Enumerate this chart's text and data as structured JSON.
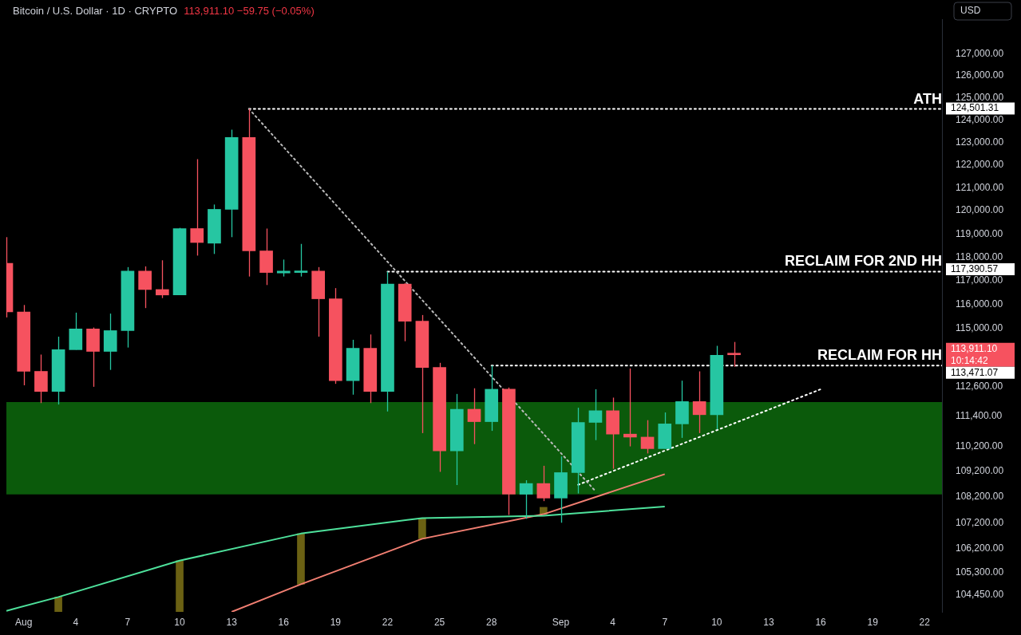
{
  "chart_data": {
    "type": "candlestick",
    "title": "Bitcoin / U.S. Dollar · 1D · CRYPTO",
    "subtitle": "113,911.10 −59.75 (−0.05%)",
    "log": "y",
    "xlim": [
      "--07-31",
      "--09-23"
    ],
    "ylim": [
      103800,
      128600
    ],
    "xticks": [
      {
        "value": "--08-01",
        "label": "Aug"
      },
      {
        "value": "--08-04",
        "label": "4"
      },
      {
        "value": "--08-07",
        "label": "7"
      },
      {
        "value": "--08-10",
        "label": "10"
      },
      {
        "value": "--08-13",
        "label": "13"
      },
      {
        "value": "--08-16",
        "label": "16"
      },
      {
        "value": "--08-19",
        "label": "19"
      },
      {
        "value": "--08-22",
        "label": "22"
      },
      {
        "value": "--08-25",
        "label": "25"
      },
      {
        "value": "--08-28",
        "label": "28"
      },
      {
        "value": "--09-01",
        "label": "Sep"
      },
      {
        "value": "--09-04",
        "label": "4"
      },
      {
        "value": "--09-07",
        "label": "7"
      },
      {
        "value": "--09-10",
        "label": "10"
      },
      {
        "value": "--09-13",
        "label": "13"
      },
      {
        "value": "--09-16",
        "label": "16"
      },
      {
        "value": "--09-19",
        "label": "19"
      },
      {
        "value": "--09-22",
        "label": "22"
      }
    ],
    "yticks": [
      {
        "value": 127000,
        "label": "127,000.00"
      },
      {
        "value": 126000,
        "label": "126,000.00"
      },
      {
        "value": 125000,
        "label": "125,000.00"
      },
      {
        "value": 124000,
        "label": "124,000.00"
      },
      {
        "value": 123000,
        "label": "123,000.00"
      },
      {
        "value": 122000,
        "label": "122,000.00"
      },
      {
        "value": 121000,
        "label": "121,000.00"
      },
      {
        "value": 120000,
        "label": "120,000.00"
      },
      {
        "value": 119000,
        "label": "119,000.00"
      },
      {
        "value": 118000,
        "label": "118,000.00"
      },
      {
        "value": 117000,
        "label": "117,000.00"
      },
      {
        "value": 116000,
        "label": "116,000.00"
      },
      {
        "value": 115000,
        "label": "115,000.00"
      },
      {
        "value": 112600,
        "label": "112,600.00"
      },
      {
        "value": 111400,
        "label": "111,400.00"
      },
      {
        "value": 110200,
        "label": "110,200.00"
      },
      {
        "value": 109200,
        "label": "109,200.00"
      },
      {
        "value": 108200,
        "label": "108,200.00"
      },
      {
        "value": 107200,
        "label": "107,200.00"
      },
      {
        "value": 106200,
        "label": "106,200.00"
      },
      {
        "value": 105300,
        "label": "105,300.00"
      },
      {
        "value": 104450,
        "label": "104,450.00"
      }
    ],
    "bands": [
      {
        "axis": "y",
        "from": 108300,
        "to": 111980,
        "color": "#0b5a0b"
      }
    ],
    "series": [
      {
        "type": "bar",
        "x": [
          "--08-03",
          "--08-10",
          "--08-17",
          "--08-24",
          "--08-31"
        ],
        "base": [
          103800,
          103800,
          104840,
          106580,
          107530
        ],
        "values": [
          560,
          1940,
          1940,
          800,
          270
        ],
        "color": "#6b6113"
      },
      {
        "type": "line",
        "x": [
          "--07-31",
          "--08-03",
          "--08-10",
          "--08-17",
          "--08-24",
          "--08-31",
          "--09-07"
        ],
        "values": [
          103840,
          104360,
          105740,
          106780,
          107380,
          107470,
          107830
        ],
        "color": "#4ee29c"
      },
      {
        "type": "line",
        "x": [
          "--08-13",
          "--08-17",
          "--08-24",
          "--08-31",
          "--09-07"
        ],
        "values": [
          103800,
          104840,
          106580,
          107530,
          109100
        ],
        "color": "#f27f72"
      },
      {
        "type": "line",
        "x": [
          "--08-14",
          "--09-03"
        ],
        "values": [
          124501.31,
          108430
        ],
        "color": "#bbbbbb",
        "line_style": "dotted"
      },
      {
        "type": "line",
        "x": [
          "--09-02",
          "--09-16"
        ],
        "values": [
          108680,
          112500
        ],
        "color": "#ffffff",
        "line_style": "dotted"
      },
      {
        "type": "line",
        "x": [
          "--08-14",
          "--09-23"
        ],
        "values": [
          124501.31,
          124501.31
        ],
        "color": "#ffffff",
        "line_style": "dotted",
        "value_labels": [
          null,
          "124,501.31"
        ]
      },
      {
        "type": "line",
        "x": [
          "--08-22",
          "--09-23"
        ],
        "values": [
          117390.57,
          117390.57
        ],
        "color": "#ffffff",
        "line_style": "dotted",
        "value_labels": [
          null,
          "117,390.57"
        ]
      },
      {
        "type": "line",
        "x": [
          "--08-28",
          "--09-23"
        ],
        "values": [
          113471.07,
          113471.07
        ],
        "color": "#ffffff",
        "line_style": "dotted",
        "value_labels": [
          null,
          "113,471.07"
        ]
      },
      {
        "x": [
          "--07-31",
          "--08-01",
          "--08-02",
          "--08-03",
          "--08-04",
          "--08-05",
          "--08-06",
          "--08-07",
          "--08-08",
          "--08-09",
          "--08-10",
          "--08-11",
          "--08-12",
          "--08-13",
          "--08-14",
          "--08-15",
          "--08-16",
          "--08-17",
          "--08-18",
          "--08-19",
          "--08-20",
          "--08-21",
          "--08-22",
          "--08-23",
          "--08-24",
          "--08-25",
          "--08-26",
          "--08-27",
          "--08-28",
          "--08-29",
          "--08-30",
          "--08-31",
          "--09-01",
          "--09-02",
          "--09-03",
          "--09-04",
          "--09-05",
          "--09-06",
          "--09-07",
          "--09-08",
          "--09-09",
          "--09-10",
          "--09-11"
        ],
        "ohlc": [
          [
            117740,
            118860,
            115460,
            115690
          ],
          [
            115690,
            115980,
            112660,
            113230
          ],
          [
            113230,
            113920,
            111940,
            112410
          ],
          [
            112410,
            114660,
            111880,
            114120
          ],
          [
            114120,
            115660,
            114120,
            114980
          ],
          [
            114980,
            115040,
            112600,
            114050
          ],
          [
            114050,
            115620,
            113290,
            114910
          ],
          [
            114910,
            117580,
            114210,
            117410
          ],
          [
            117410,
            117610,
            115850,
            116630
          ],
          [
            116630,
            117870,
            116270,
            116400
          ],
          [
            116400,
            119260,
            116400,
            119230
          ],
          [
            119230,
            122260,
            118070,
            118630
          ],
          [
            118600,
            120270,
            118140,
            120060
          ],
          [
            120060,
            123570,
            118860,
            123220
          ],
          [
            123220,
            124501.31,
            117180,
            118270
          ],
          [
            118270,
            119230,
            116820,
            117350
          ],
          [
            117330,
            117900,
            117180,
            117410
          ],
          [
            117350,
            118570,
            117180,
            117410
          ],
          [
            117410,
            117580,
            114660,
            116240
          ],
          [
            116240,
            116690,
            112720,
            112850
          ],
          [
            112850,
            114530,
            112280,
            114180
          ],
          [
            114180,
            114750,
            111940,
            112410
          ],
          [
            112410,
            117390.57,
            111600,
            116860
          ],
          [
            116860,
            116900,
            114470,
            115300
          ],
          [
            115300,
            115560,
            110730,
            113390
          ],
          [
            113390,
            113580,
            109190,
            110020
          ],
          [
            110020,
            112310,
            108670,
            111690
          ],
          [
            111690,
            112540,
            110290,
            111190
          ],
          [
            111190,
            113471.07,
            110820,
            112500
          ],
          [
            112500,
            112570,
            107500,
            108310
          ],
          [
            108310,
            108860,
            107350,
            108730
          ],
          [
            108730,
            109430,
            108040,
            108160
          ],
          [
            108160,
            109800,
            107200,
            109160
          ],
          [
            109160,
            111750,
            108340,
            111160
          ],
          [
            111160,
            112500,
            110450,
            111630
          ],
          [
            111630,
            112160,
            109310,
            110690
          ],
          [
            110690,
            113350,
            110200,
            110570
          ],
          [
            110570,
            111250,
            109920,
            110110
          ],
          [
            110110,
            111560,
            110110,
            111100
          ],
          [
            111100,
            112850,
            110540,
            112000
          ],
          [
            112000,
            113230,
            110730,
            111470
          ],
          [
            111470,
            114280,
            110880,
            113890
          ],
          [
            113970.85,
            114440,
            113420,
            113911.1
          ]
        ],
        "colors": [
          "#f6525f",
          "#f6525f",
          "#f6525f",
          "#26c6a2",
          "#26c6a2",
          "#f6525f",
          "#26c6a2",
          "#26c6a2",
          "#f6525f",
          "#f6525f",
          "#26c6a2",
          "#f6525f",
          "#26c6a2",
          "#26c6a2",
          "#f6525f",
          "#f6525f",
          "#26c6a2",
          "#26c6a2",
          "#f6525f",
          "#f6525f",
          "#26c6a2",
          "#f6525f",
          "#26c6a2",
          "#f6525f",
          "#f6525f",
          "#f6525f",
          "#26c6a2",
          "#f6525f",
          "#26c6a2",
          "#f6525f",
          "#26c6a2",
          "#f6525f",
          "#26c6a2",
          "#26c6a2",
          "#26c6a2",
          "#f6525f",
          "#f6525f",
          "#f6525f",
          "#26c6a2",
          "#26c6a2",
          "#f6525f",
          "#26c6a2",
          "#f6525f"
        ]
      }
    ],
    "annotations": [
      "USD",
      {
        "text": "ATH",
        "x": "--09-23",
        "y": 124501.31
      },
      {
        "text": "RECLAIM FOR 2ND HH",
        "x": "--09-23",
        "y": 117390.57
      },
      {
        "text": "RECLAIM FOR HH",
        "x": "--09-23",
        "y": 113471.07
      },
      "113,911.10",
      "10:14:42"
    ]
  }
}
